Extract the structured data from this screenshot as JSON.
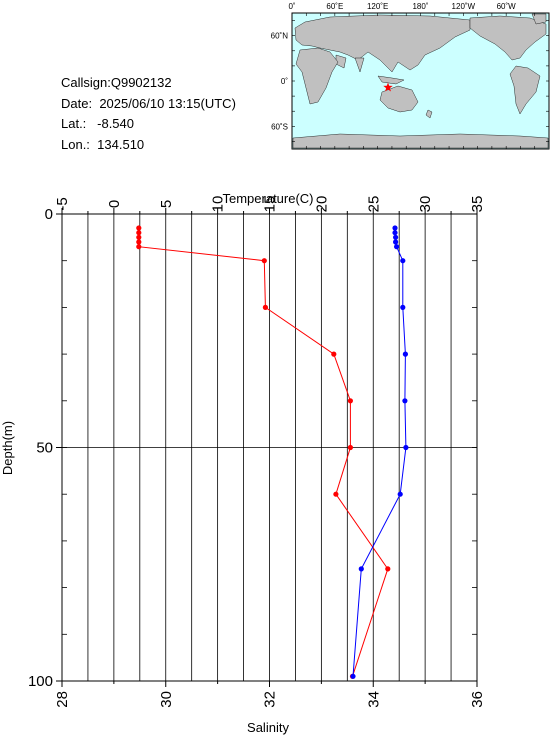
{
  "station": {
    "callsign_label": "Callsign:",
    "callsign": "Q9902132",
    "date_label": "Date:",
    "date": "2025/06/10 13:15(UTC)",
    "lat_label": "Lat.:",
    "lat": "-8.540",
    "lon_label": "Lon.:",
    "lon": "134.510"
  },
  "map": {
    "lon_labels": [
      "0˚",
      "60˚E",
      "120˚E",
      "180˚",
      "120˚W",
      "60˚W"
    ],
    "lat_labels": [
      "60˚N",
      "0˚",
      "60˚S"
    ],
    "ocean_color": "#ccffff",
    "land_color": "#c0c0c0",
    "marker_color": "#ff0000",
    "marker": {
      "lon": 134.51,
      "lat": -8.54
    }
  },
  "chart_data": {
    "type": "line",
    "xlabel_top": "Temperature(C)",
    "xlabel_bottom": "Salinity",
    "ylabel": "Depth(m)",
    "temperature_range": [
      -5,
      35
    ],
    "temperature_ticks": [
      "-5",
      "0",
      "5",
      "10",
      "15",
      "20",
      "25",
      "30",
      "35"
    ],
    "salinity_range": [
      28,
      36
    ],
    "salinity_ticks": [
      "28",
      "30",
      "32",
      "34",
      "36"
    ],
    "depth_range": [
      0,
      100
    ],
    "depth_ticks": [
      "0",
      "50",
      "100"
    ],
    "grid": true,
    "series": [
      {
        "quantity": "temperature",
        "color": "#ff0000",
        "depth": [
          3,
          4,
          5,
          6,
          7,
          10,
          20,
          30,
          40,
          50,
          60,
          76,
          99
        ],
        "values": [
          2.4,
          2.4,
          2.4,
          2.4,
          2.4,
          14.5,
          14.6,
          21.2,
          22.8,
          22.8,
          21.4,
          26.4,
          23.0
        ]
      },
      {
        "quantity": "salinity",
        "color": "#0000ff",
        "depth": [
          3,
          4,
          5,
          6,
          7,
          10,
          20,
          30,
          40,
          50,
          60,
          76,
          99
        ],
        "values": [
          34.42,
          34.42,
          34.43,
          34.43,
          34.45,
          34.57,
          34.57,
          34.62,
          34.61,
          34.63,
          34.52,
          33.77,
          33.61
        ]
      }
    ]
  }
}
